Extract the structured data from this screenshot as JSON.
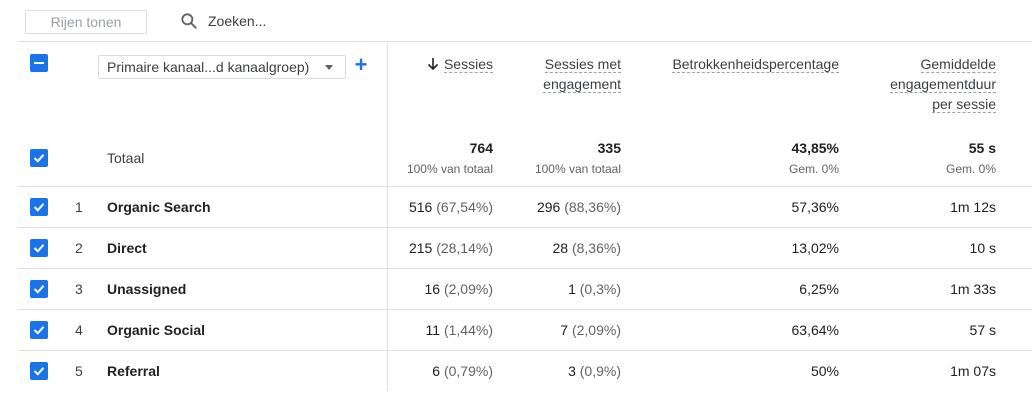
{
  "toolbar": {
    "rows_button": "Rijen tonen",
    "search_placeholder": "Zoeken..."
  },
  "table": {
    "dimension_select": "Primaire kanaal...d kanaalgroep)",
    "add_dimension": "+",
    "columns": [
      {
        "line1": "Sessies",
        "line2": "",
        "line3": "",
        "sorted": "descending"
      },
      {
        "line1": "Sessies met",
        "line2": "engagement",
        "line3": ""
      },
      {
        "line1": "Betrokkenheidspercentage",
        "line2": "",
        "line3": ""
      },
      {
        "line1": "Gemiddelde",
        "line2": "engagementduur",
        "line3": "per sessie"
      }
    ],
    "total": {
      "label": "Totaal",
      "values": [
        "764",
        "335",
        "43,85%",
        "55 s"
      ],
      "subs": [
        "100% van totaal",
        "100% van totaal",
        "Gem. 0%",
        "Gem. 0%"
      ]
    },
    "rows": [
      {
        "rank": "1",
        "name": "Organic Search",
        "sessions": "516",
        "sessions_pct": "(67,54%)",
        "engaged": "296",
        "engaged_pct": "(88,36%)",
        "rate": "57,36%",
        "duration": "1m 12s"
      },
      {
        "rank": "2",
        "name": "Direct",
        "sessions": "215",
        "sessions_pct": "(28,14%)",
        "engaged": "28",
        "engaged_pct": "(8,36%)",
        "rate": "13,02%",
        "duration": "10 s"
      },
      {
        "rank": "3",
        "name": "Unassigned",
        "sessions": "16",
        "sessions_pct": "(2,09%)",
        "engaged": "1",
        "engaged_pct": "(0,3%)",
        "rate": "6,25%",
        "duration": "1m 33s"
      },
      {
        "rank": "4",
        "name": "Organic Social",
        "sessions": "11",
        "sessions_pct": "(1,44%)",
        "engaged": "7",
        "engaged_pct": "(2,09%)",
        "rate": "63,64%",
        "duration": "57 s"
      },
      {
        "rank": "5",
        "name": "Referral",
        "sessions": "6",
        "sessions_pct": "(0,79%)",
        "engaged": "3",
        "engaged_pct": "(0,9%)",
        "rate": "50%",
        "duration": "1m 07s"
      }
    ]
  },
  "colors": {
    "accent": "#1a73e8",
    "border": "#e0e0e0"
  },
  "icons": {
    "search": "search-icon",
    "checkbox": "checkbox-checked-icon",
    "indeterminate": "checkbox-indeterminate-icon",
    "sort": "arrow-down-icon",
    "caret": "caret-down-icon"
  }
}
